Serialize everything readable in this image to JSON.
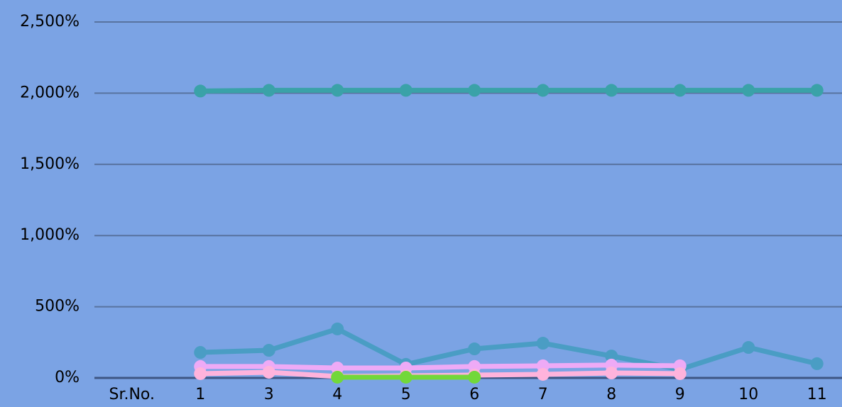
{
  "chart_data": {
    "type": "line",
    "categories": [
      "Sr.No.",
      "1",
      "3",
      "4",
      "5",
      "6",
      "7",
      "8",
      "9",
      "10",
      "11"
    ],
    "series": [
      {
        "color": "#3aa2a8",
        "values": [
          null,
          2015,
          2020,
          2020,
          2020,
          2020,
          2020,
          2020,
          2020,
          2020,
          2020
        ]
      },
      {
        "color": "#4a9dc4",
        "values": [
          null,
          179,
          194,
          344,
          95,
          204,
          244,
          154,
          60,
          214,
          100
        ]
      },
      {
        "color": "#eeaaf6",
        "values": [
          null,
          80,
          80,
          70,
          70,
          80,
          85,
          90,
          85,
          null,
          null
        ]
      },
      {
        "color": "#ffb3dc",
        "values": [
          null,
          30,
          40,
          10,
          15,
          20,
          25,
          35,
          30,
          null,
          null
        ]
      },
      {
        "color": "#72d83a",
        "values": [
          null,
          null,
          null,
          5,
          5,
          5,
          null,
          null,
          null,
          null,
          null
        ]
      }
    ],
    "ylim": [
      0,
      2500
    ],
    "yticks": [
      {
        "value": 0,
        "label": "0%"
      },
      {
        "value": 500,
        "label": "500%"
      },
      {
        "value": 1000,
        "label": "1,000%"
      },
      {
        "value": 1500,
        "label": "1,500%"
      },
      {
        "value": 2000,
        "label": "2,000%"
      },
      {
        "value": 2500,
        "label": "2,500%"
      }
    ],
    "grid": true
  }
}
